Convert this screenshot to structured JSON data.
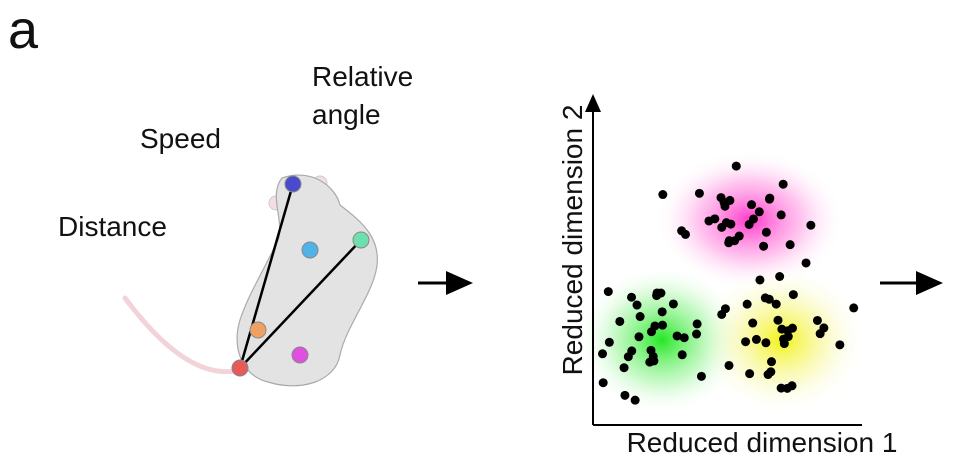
{
  "panel_label": "a",
  "features": {
    "speed": "Speed",
    "distance": "Distance",
    "relative_angle": [
      "Relative",
      "angle"
    ]
  },
  "embedding": {
    "y_label": "Reduced dimension 2",
    "x_label": "Reduced dimension 1"
  }
}
